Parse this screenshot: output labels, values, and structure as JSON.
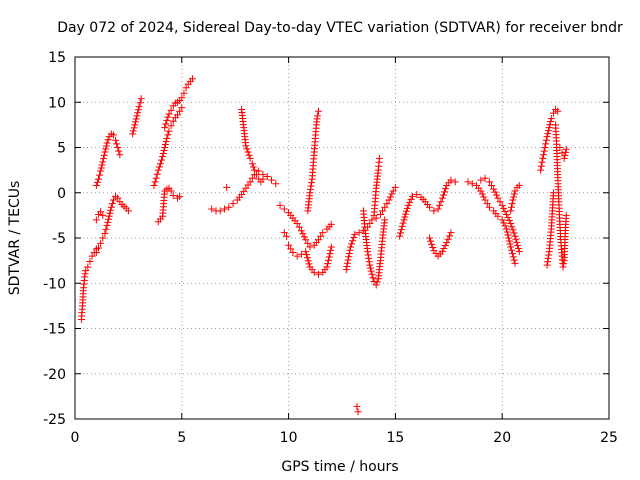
{
  "chart_data": {
    "type": "scatter",
    "title": "Day 072 of 2024, Sidereal Day-to-day VTEC variation (SDTVAR) for receiver bndr",
    "xlabel": "GPS time / hours",
    "ylabel": "SDTVAR / TECUs",
    "xlim": [
      0,
      25
    ],
    "ylim": [
      -25,
      15
    ],
    "xticks": [
      0,
      5,
      10,
      15,
      20,
      25
    ],
    "yticks": [
      -25,
      -20,
      -15,
      -10,
      -5,
      0,
      5,
      10,
      15
    ],
    "marker": "+",
    "color": "#ff0000",
    "series": [
      {
        "name": "s1",
        "x": [
          0.3,
          0.35,
          0.4,
          0.45,
          0.5,
          0.6,
          0.7,
          0.8,
          0.9,
          1.0
        ],
        "y": [
          -14,
          -12.5,
          -10.5,
          -9.3,
          -8.6,
          -8.2,
          -7.6,
          -7,
          -6.6,
          -6.2
        ]
      },
      {
        "name": "s2",
        "x": [
          1.0,
          1.1,
          1.2,
          1.3,
          1.4,
          1.5,
          1.6,
          1.7,
          1.8,
          1.9,
          2.0,
          2.1
        ],
        "y": [
          0.8,
          1.5,
          2.4,
          3.4,
          4.5,
          5.5,
          6.2,
          6.5,
          6.4,
          5.8,
          5.0,
          4.2
        ]
      },
      {
        "name": "s3",
        "x": [
          1.0,
          1.1,
          1.2,
          1.3,
          1.4,
          1.5,
          1.6,
          1.7,
          1.8,
          1.9,
          2.0,
          2.1,
          2.2,
          2.3,
          2.4,
          2.5
        ],
        "y": [
          -6.6,
          -6.1,
          -5.6,
          -5.0,
          -4.5,
          -3.6,
          -2.6,
          -1.6,
          -0.8,
          -0.4,
          -0.6,
          -1.0,
          -1.3,
          -1.5,
          -1.7,
          -2.0
        ]
      },
      {
        "name": "s4",
        "x": [
          1.0,
          1.1,
          1.2,
          1.3
        ],
        "y": [
          -3.0,
          -2.4,
          -2.1,
          -2.5
        ]
      },
      {
        "name": "s5",
        "x": [
          2.7,
          2.8,
          2.9,
          3.0,
          3.1
        ],
        "y": [
          6.5,
          7.5,
          8.5,
          9.5,
          10.4
        ]
      },
      {
        "name": "s6",
        "x": [
          3.7,
          3.8,
          3.9,
          4.0,
          4.1,
          4.2,
          4.3,
          4.4,
          4.5,
          4.6,
          4.7,
          4.8,
          4.9,
          5.0
        ],
        "y": [
          0.8,
          1.6,
          2.5,
          3.2,
          4.0,
          5.0,
          6.0,
          6.8,
          7.4,
          7.9,
          8.3,
          8.6,
          9.0,
          9.4
        ]
      },
      {
        "name": "s7",
        "x": [
          4.2,
          4.3,
          4.4,
          4.5,
          4.6,
          4.7,
          4.8,
          4.9,
          5.0,
          5.1,
          5.2,
          5.3,
          5.4,
          5.5
        ],
        "y": [
          7.2,
          8.0,
          8.7,
          9.1,
          9.6,
          9.9,
          10.0,
          10.2,
          10.5,
          11.0,
          11.6,
          12.0,
          12.3,
          12.6
        ]
      },
      {
        "name": "s8",
        "x": [
          3.9,
          4.0,
          4.1,
          4.2,
          4.3,
          4.4,
          4.5,
          4.6,
          4.8,
          4.9
        ],
        "y": [
          -3.2,
          -2.9,
          -2.6,
          0.2,
          0.4,
          0.5,
          0.2,
          -0.3,
          -0.6,
          -0.4
        ]
      },
      {
        "name": "s9",
        "x": [
          6.4,
          6.6,
          6.8,
          7.0,
          7.2,
          7.4,
          7.6,
          7.8,
          8.0,
          8.2,
          8.4,
          8.6,
          8.8,
          9.0,
          9.2,
          9.4
        ],
        "y": [
          -1.8,
          -2.0,
          -2.0,
          -1.8,
          -1.6,
          -1.2,
          -0.8,
          -0.2,
          0.5,
          1.2,
          2.0,
          2.4,
          2.0,
          1.8,
          1.4,
          1.0
        ]
      },
      {
        "name": "s10",
        "x": [
          7.8,
          7.85,
          7.9,
          7.95,
          8.0,
          8.1,
          8.2,
          8.3,
          8.4,
          8.5,
          8.6,
          8.7,
          8.8
        ],
        "y": [
          9.2,
          8.2,
          7.2,
          6.2,
          5.2,
          4.5,
          3.8,
          3.2,
          2.5,
          2.0,
          1.5,
          1.2,
          1.5
        ]
      },
      {
        "name": "s11",
        "x": [
          7.1
        ],
        "y": [
          0.6
        ]
      },
      {
        "name": "s12",
        "x": [
          9.6,
          9.8,
          10.0,
          10.2,
          10.4,
          10.6,
          10.8,
          11.0,
          11.2,
          11.4,
          11.6,
          11.8,
          12.0
        ],
        "y": [
          -1.4,
          -1.8,
          -2.2,
          -2.8,
          -3.4,
          -4.2,
          -5.2,
          -6.0,
          -5.8,
          -5.2,
          -4.4,
          -4.0,
          -3.5
        ]
      },
      {
        "name": "s13",
        "x": [
          10.0,
          10.2,
          10.4,
          10.6,
          10.8,
          11.0,
          11.2,
          11.4,
          11.6,
          11.8,
          12.0
        ],
        "y": [
          -5.8,
          -6.6,
          -7.0,
          -6.8,
          -6.5,
          -8.2,
          -8.8,
          -9.0,
          -8.8,
          -8.2,
          -6.0
        ]
      },
      {
        "name": "s14",
        "x": [
          10.9,
          11.0,
          11.1,
          11.15,
          11.2,
          11.25,
          11.3,
          11.35,
          11.4
        ],
        "y": [
          -2.0,
          0.0,
          1.5,
          3.0,
          4.5,
          6.0,
          7.5,
          8.5,
          9.0
        ]
      },
      {
        "name": "s15",
        "x": [
          9.8,
          9.9
        ],
        "y": [
          -4.4,
          -4.8
        ]
      },
      {
        "name": "s16",
        "x": [
          12.7,
          12.9,
          13.1,
          13.3,
          13.5,
          13.7,
          13.9,
          14.1,
          14.3,
          14.5,
          14.7,
          14.9,
          15.0
        ],
        "y": [
          -8.5,
          -6.0,
          -4.6,
          -4.4,
          -4.2,
          -3.8,
          -3.0,
          -2.8,
          -2.4,
          -1.6,
          -0.8,
          0.2,
          0.6
        ]
      },
      {
        "name": "s17",
        "x": [
          13.5,
          13.6,
          13.7,
          13.8,
          13.9,
          14.0,
          14.1,
          14.2,
          14.3,
          14.4,
          14.5
        ],
        "y": [
          -2.0,
          -4.5,
          -6.5,
          -8.0,
          -9.0,
          -9.8,
          -10.2,
          -9.5,
          -7.5,
          -5.0,
          -3.0
        ]
      },
      {
        "name": "s18",
        "x": [
          14.0,
          14.05,
          14.1,
          14.15,
          14.2,
          14.25
        ],
        "y": [
          -2.5,
          -1.0,
          0.5,
          1.5,
          2.5,
          3.8
        ]
      },
      {
        "name": "s19",
        "x": [
          13.2,
          13.25
        ],
        "y": [
          -23.6,
          -24.2
        ]
      },
      {
        "name": "s20",
        "x": [
          15.2,
          15.4,
          15.6,
          15.8,
          16.0,
          16.2,
          16.4,
          16.6,
          16.8,
          17.0,
          17.2,
          17.4,
          17.6,
          17.8
        ],
        "y": [
          -4.8,
          -3.0,
          -1.4,
          -0.4,
          -0.2,
          -0.5,
          -1.0,
          -1.6,
          -2.0,
          -1.8,
          -0.6,
          0.8,
          1.4,
          1.2
        ]
      },
      {
        "name": "s21",
        "x": [
          16.6,
          16.8,
          17.0,
          17.2,
          17.4,
          17.6
        ],
        "y": [
          -5.0,
          -6.4,
          -7.0,
          -6.5,
          -5.5,
          -4.4
        ]
      },
      {
        "name": "s22",
        "x": [
          18.4,
          18.6,
          18.8,
          19.0,
          19.2,
          19.4,
          19.6,
          19.8,
          20.0,
          20.2,
          20.4,
          20.6
        ],
        "y": [
          1.2,
          1.0,
          0.8,
          0.2,
          -0.8,
          -1.6,
          -2.0,
          -2.6,
          -3.0,
          -4.0,
          -6.0,
          -7.8
        ]
      },
      {
        "name": "s23",
        "x": [
          19.0,
          19.2,
          19.4,
          19.6,
          19.8,
          20.0,
          20.2,
          20.4,
          20.6,
          20.8
        ],
        "y": [
          1.4,
          1.6,
          1.2,
          0.4,
          -0.6,
          -1.4,
          -2.4,
          -3.4,
          -4.8,
          -6.5
        ]
      },
      {
        "name": "s24",
        "x": [
          20.4,
          20.5,
          20.6,
          20.7,
          20.8
        ],
        "y": [
          -2.0,
          -0.8,
          0.2,
          0.6,
          0.8
        ]
      },
      {
        "name": "s25",
        "x": [
          21.8,
          21.9,
          22.0,
          22.1,
          22.2,
          22.3,
          22.4,
          22.5,
          22.6
        ],
        "y": [
          2.5,
          3.8,
          5.0,
          6.2,
          7.2,
          8.2,
          8.8,
          9.2,
          9.0
        ]
      },
      {
        "name": "s26",
        "x": [
          22.1,
          22.2,
          22.3,
          22.35,
          22.4
        ],
        "y": [
          -8.0,
          -6.5,
          -4.0,
          -2.0,
          0.0
        ]
      },
      {
        "name": "s27",
        "x": [
          22.5,
          22.55,
          22.6,
          22.65,
          22.7,
          22.75,
          22.8,
          22.85,
          22.9,
          22.95,
          23.0
        ],
        "y": [
          7.5,
          5.0,
          2.0,
          -1.0,
          -3.5,
          -5.5,
          -7.0,
          -8.2,
          -7.5,
          -4.5,
          -2.5
        ]
      },
      {
        "name": "s28",
        "x": [
          22.7,
          22.8,
          22.9,
          23.0
        ],
        "y": [
          5.0,
          4.4,
          3.8,
          4.8
        ]
      }
    ]
  }
}
